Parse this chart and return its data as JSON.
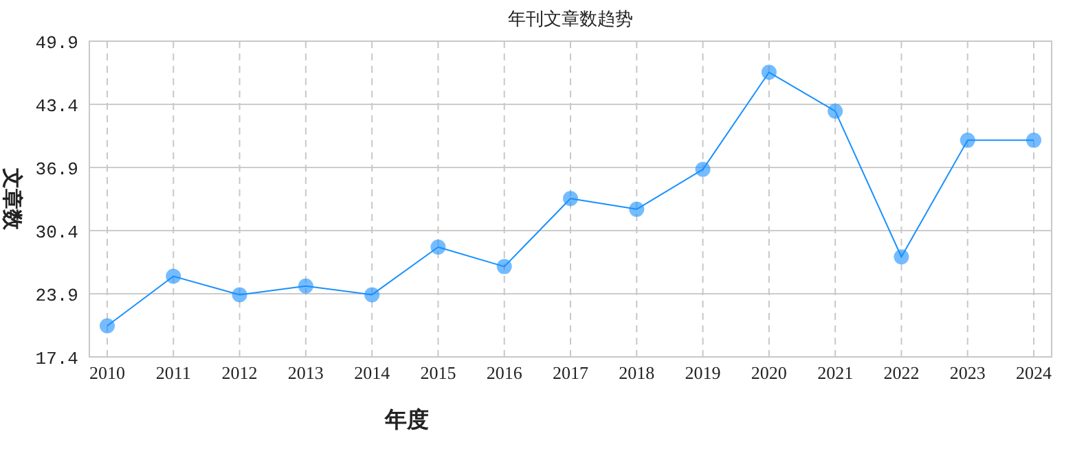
{
  "chart_data": {
    "type": "line",
    "title": "年刊文章数趋势",
    "xlabel": "年度",
    "ylabel": "文章数",
    "categories": [
      "2010",
      "2011",
      "2012",
      "2013",
      "2014",
      "2015",
      "2016",
      "2017",
      "2018",
      "2019",
      "2020",
      "2021",
      "2022",
      "2023",
      "2024"
    ],
    "series": [
      {
        "color": "#1890ff",
        "values": [
          20.6,
          25.7,
          23.8,
          24.7,
          23.8,
          28.7,
          26.7,
          33.7,
          32.6,
          36.7,
          46.7,
          42.7,
          27.7,
          39.7,
          39.7
        ]
      }
    ],
    "ylim": [
      17.4,
      49.9
    ],
    "yticks": [
      17.4,
      23.9,
      30.4,
      36.9,
      43.4,
      49.9
    ],
    "grid": true,
    "marker": "circle",
    "line_style": "solid"
  }
}
